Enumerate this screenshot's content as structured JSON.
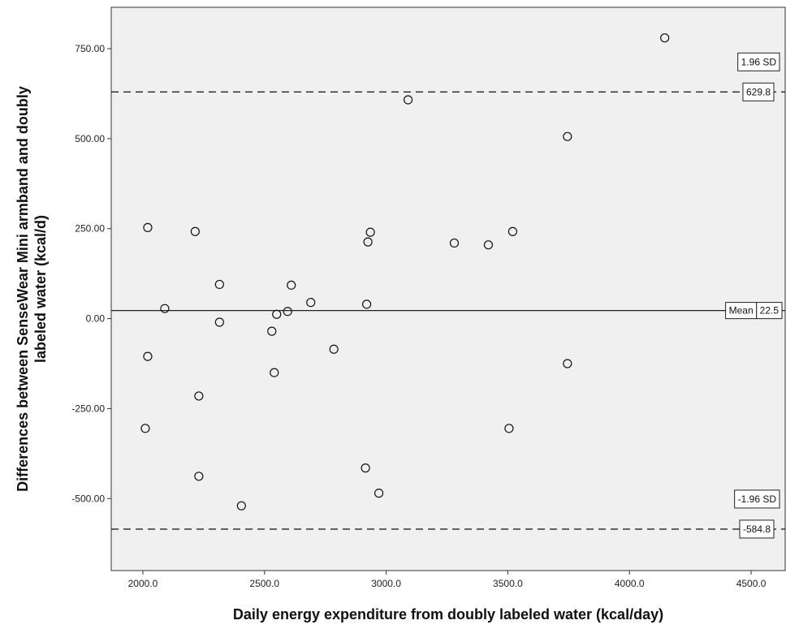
{
  "chart_data": {
    "type": "scatter",
    "xlabel": "Daily energy expenditure from doubly labeled water (kcal/day)",
    "ylabel_line1": "Differences between SenseWear Mini armband and doubly",
    "ylabel_line2": "labeled water (kcal/d)",
    "xlim": [
      1870,
      4640
    ],
    "ylim": [
      -700,
      865
    ],
    "x_ticks": [
      2000,
      2500,
      3000,
      3500,
      4000,
      4500
    ],
    "x_tick_labels": [
      "2000.0",
      "2500.0",
      "3000.0",
      "3500.0",
      "4000.0",
      "4500.0"
    ],
    "y_ticks": [
      750,
      500,
      250,
      0,
      -250,
      -500
    ],
    "y_tick_labels": [
      "750.00",
      "500.00",
      "250.00",
      "0.00",
      "-250.00",
      "-500.00"
    ],
    "grid": false,
    "plot_background": "#f0f0f0",
    "reference_lines": [
      {
        "y": 629.8,
        "style": "dashed",
        "label": "1.96 SD",
        "value_label": "629.8"
      },
      {
        "y": 22.5,
        "style": "solid",
        "label": "Mean",
        "value_label": "22.5"
      },
      {
        "y": -584.8,
        "style": "dashed",
        "label": "-1.96 SD",
        "value_label": "-584.8"
      }
    ],
    "points": [
      {
        "x": 2010,
        "y": -305
      },
      {
        "x": 2020,
        "y": 253
      },
      {
        "x": 2020,
        "y": -105
      },
      {
        "x": 2090,
        "y": 28
      },
      {
        "x": 2215,
        "y": 242
      },
      {
        "x": 2230,
        "y": -215
      },
      {
        "x": 2230,
        "y": -438
      },
      {
        "x": 2315,
        "y": 95
      },
      {
        "x": 2315,
        "y": -10
      },
      {
        "x": 2405,
        "y": -520
      },
      {
        "x": 2530,
        "y": -35
      },
      {
        "x": 2540,
        "y": -150
      },
      {
        "x": 2550,
        "y": 12
      },
      {
        "x": 2595,
        "y": 20
      },
      {
        "x": 2610,
        "y": 93
      },
      {
        "x": 2690,
        "y": 45
      },
      {
        "x": 2785,
        "y": -85
      },
      {
        "x": 2915,
        "y": -415
      },
      {
        "x": 2920,
        "y": 40
      },
      {
        "x": 2925,
        "y": 213
      },
      {
        "x": 2935,
        "y": 240
      },
      {
        "x": 2970,
        "y": -485
      },
      {
        "x": 3090,
        "y": 608
      },
      {
        "x": 3280,
        "y": 210
      },
      {
        "x": 3420,
        "y": 205
      },
      {
        "x": 3505,
        "y": -305
      },
      {
        "x": 3520,
        "y": 242
      },
      {
        "x": 3745,
        "y": 506
      },
      {
        "x": 3745,
        "y": -125
      },
      {
        "x": 4145,
        "y": 780
      }
    ]
  }
}
